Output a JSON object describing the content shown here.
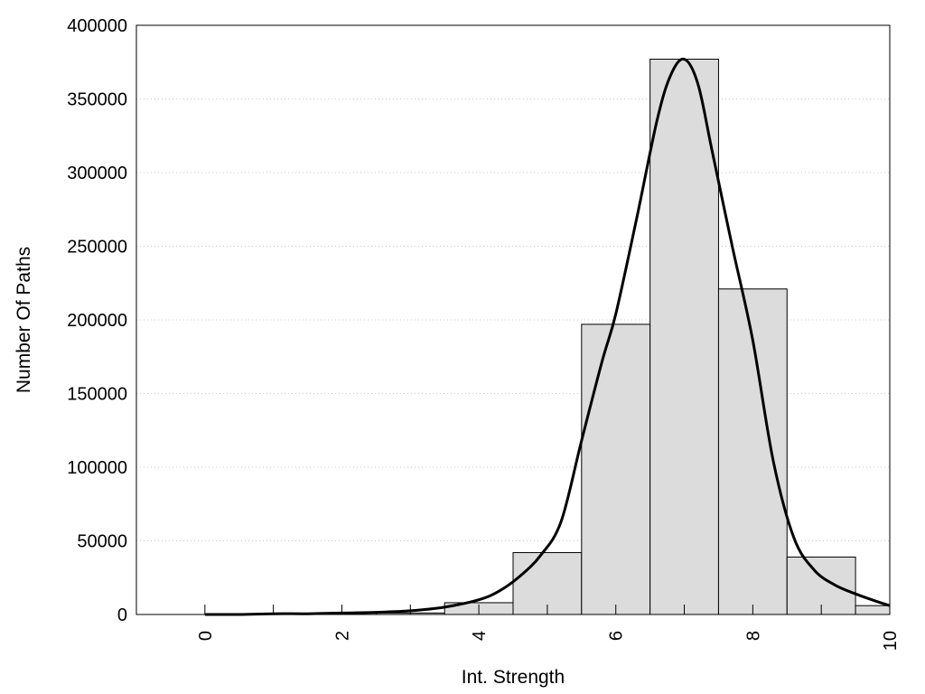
{
  "chart_data": {
    "type": "bar",
    "title": "",
    "xlabel": "Int. Strength",
    "ylabel": "Number Of Paths",
    "xlim": [
      -1,
      10
    ],
    "ylim": [
      0,
      400000
    ],
    "x_ticks": [
      0,
      2,
      4,
      6,
      8,
      10
    ],
    "x_tick_rotation": "vertical",
    "y_ticks": [
      0,
      50000,
      100000,
      150000,
      200000,
      250000,
      300000,
      350000,
      400000
    ],
    "grid": "horizontal dotted",
    "legend": "none",
    "bar_color": "#dcdcdc",
    "bar_edge_color": "#000000",
    "categories": [
      0,
      1,
      2,
      3,
      4,
      5,
      6,
      7,
      8,
      9,
      10
    ],
    "values": [
      0,
      0,
      0,
      1000,
      8000,
      42000,
      197000,
      377000,
      221000,
      39000,
      6000
    ],
    "curve": {
      "color": "#000000",
      "x": [
        0,
        0.5,
        1.0,
        1.5,
        2.0,
        2.5,
        3.0,
        3.5,
        4.0,
        4.3,
        4.6,
        4.9,
        5.2,
        5.5,
        5.8,
        6.0,
        6.3,
        6.6,
        6.8,
        7.0,
        7.2,
        7.4,
        7.7,
        8.0,
        8.3,
        8.6,
        8.9,
        9.2,
        9.5,
        9.8,
        10.0
      ],
      "y": [
        0,
        0,
        500,
        500,
        1000,
        1500,
        2500,
        5000,
        10000,
        16000,
        26000,
        40000,
        63000,
        118000,
        172000,
        204000,
        268000,
        335000,
        366000,
        377000,
        360000,
        316000,
        250000,
        186000,
        104000,
        52000,
        30000,
        20000,
        14000,
        9000,
        6000
      ]
    }
  }
}
